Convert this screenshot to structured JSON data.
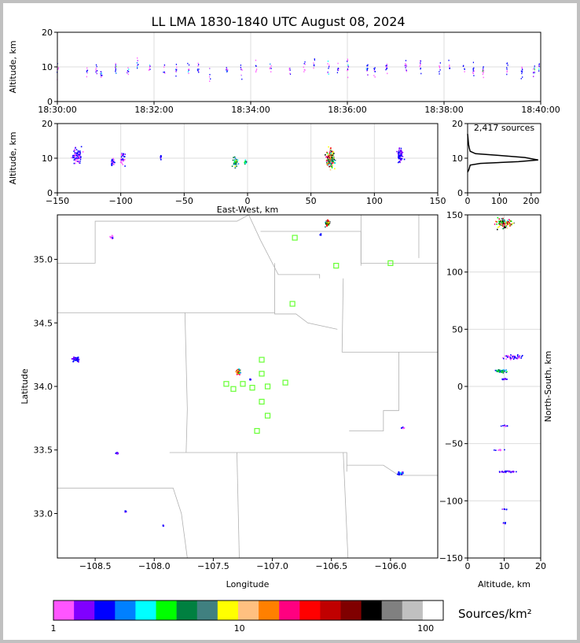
{
  "title": "LL LMA 1830-1840 UTC August 08, 2024",
  "colorbar": {
    "label": "Sources/km²",
    "tick_labels": [
      "1",
      "10",
      "100"
    ],
    "colors": [
      "#ff55ff",
      "#8000ff",
      "#0000ff",
      "#0080ff",
      "#00ffff",
      "#00ff00",
      "#008040",
      "#408080",
      "#ffff00",
      "#ffc080",
      "#ff8000",
      "#ff0080",
      "#ff0000",
      "#c00000",
      "#800000",
      "#000000",
      "#808080",
      "#c0c0c0",
      "#ffffff"
    ]
  },
  "chart_data": [
    {
      "type": "scatter",
      "panel": "altitude-time",
      "xlabel": "",
      "ylabel": "Altitude, km",
      "xticks": [
        "18:30:00",
        "18:32:00",
        "18:34:00",
        "18:36:00",
        "18:38:00",
        "18:40:00"
      ],
      "xlim_minutes": [
        0,
        10
      ],
      "ylim": [
        0,
        20
      ],
      "yticks": [
        0,
        10,
        20
      ],
      "grid": true,
      "columns": [
        {
          "t": 0.0,
          "center": 9,
          "spread": 4
        },
        {
          "t": 0.6,
          "center": 9,
          "spread": 3
        },
        {
          "t": 0.8,
          "center": 9,
          "spread": 3
        },
        {
          "t": 0.9,
          "center": 8,
          "spread": 2
        },
        {
          "t": 1.2,
          "center": 10,
          "spread": 3
        },
        {
          "t": 1.45,
          "center": 9,
          "spread": 2
        },
        {
          "t": 1.65,
          "center": 11,
          "spread": 4
        },
        {
          "t": 1.9,
          "center": 10,
          "spread": 2
        },
        {
          "t": 2.2,
          "center": 10,
          "spread": 3
        },
        {
          "t": 2.45,
          "center": 9,
          "spread": 3
        },
        {
          "t": 2.7,
          "center": 9,
          "spread": 3
        },
        {
          "t": 2.9,
          "center": 10,
          "spread": 3
        },
        {
          "t": 3.15,
          "center": 8,
          "spread": 4
        },
        {
          "t": 3.5,
          "center": 9,
          "spread": 2
        },
        {
          "t": 3.8,
          "center": 9,
          "spread": 4
        },
        {
          "t": 4.1,
          "center": 10,
          "spread": 4
        },
        {
          "t": 4.4,
          "center": 10,
          "spread": 3
        },
        {
          "t": 4.8,
          "center": 9,
          "spread": 3
        },
        {
          "t": 5.1,
          "center": 10,
          "spread": 3
        },
        {
          "t": 5.3,
          "center": 10,
          "spread": 3
        },
        {
          "t": 5.6,
          "center": 10,
          "spread": 3
        },
        {
          "t": 5.8,
          "center": 9,
          "spread": 3
        },
        {
          "t": 6.0,
          "center": 10,
          "spread": 4
        },
        {
          "t": 6.4,
          "center": 10,
          "spread": 3
        },
        {
          "t": 6.55,
          "center": 9,
          "spread": 3
        },
        {
          "t": 6.8,
          "center": 10,
          "spread": 3
        },
        {
          "t": 7.2,
          "center": 10,
          "spread": 3
        },
        {
          "t": 7.5,
          "center": 11,
          "spread": 4
        },
        {
          "t": 7.9,
          "center": 10,
          "spread": 3
        },
        {
          "t": 8.1,
          "center": 10,
          "spread": 3
        },
        {
          "t": 8.4,
          "center": 10,
          "spread": 3
        },
        {
          "t": 8.6,
          "center": 9,
          "spread": 3
        },
        {
          "t": 8.8,
          "center": 9,
          "spread": 3
        },
        {
          "t": 9.3,
          "center": 10,
          "spread": 3
        },
        {
          "t": 9.6,
          "center": 9,
          "spread": 3
        },
        {
          "t": 9.85,
          "center": 9,
          "spread": 3
        },
        {
          "t": 9.95,
          "center": 10,
          "spread": 3
        }
      ]
    },
    {
      "type": "scatter",
      "panel": "altitude-eastwest",
      "xlabel": "East-West, km",
      "ylabel": "Altitude, km",
      "xlim": [
        -150,
        150
      ],
      "xticks": [
        -150,
        -100,
        -50,
        0,
        50,
        100,
        150
      ],
      "ylim": [
        0,
        20
      ],
      "yticks": [
        0,
        10,
        20
      ],
      "grid": true,
      "clusters": [
        {
          "x": -135,
          "x_spread": 5,
          "center": 11,
          "spread": 4,
          "n": 90,
          "peak": 1
        },
        {
          "x": -107,
          "x_spread": 2,
          "center": 9,
          "spread": 2,
          "n": 25,
          "peak": 1
        },
        {
          "x": -99,
          "x_spread": 3,
          "center": 10,
          "spread": 3,
          "n": 35,
          "peak": 0
        },
        {
          "x": -69,
          "x_spread": 1,
          "center": 10.5,
          "spread": 1,
          "n": 8,
          "peak": 2
        },
        {
          "x": -10,
          "x_spread": 3,
          "center": 9,
          "spread": 2,
          "n": 60,
          "peak": 7
        },
        {
          "x": -2,
          "x_spread": 1,
          "center": 9,
          "spread": 1,
          "n": 12,
          "peak": 5
        },
        {
          "x": 65,
          "x_spread": 4,
          "center": 10,
          "spread": 4,
          "n": 170,
          "peak": 13
        },
        {
          "x": 120,
          "x_spread": 3,
          "center": 11,
          "spread": 3,
          "n": 60,
          "peak": 2
        }
      ]
    },
    {
      "type": "line",
      "panel": "altitude-histogram",
      "annotation": "2,417 sources",
      "xlim": [
        0,
        230
      ],
      "xticks": [
        0,
        100,
        200
      ],
      "ylim": [
        0,
        20
      ],
      "yticks": [
        0,
        10,
        20
      ],
      "x": [
        0,
        3,
        5,
        8,
        40,
        160,
        222,
        180,
        100,
        25,
        8,
        5,
        3,
        2,
        1,
        0
      ],
      "y": [
        6,
        6.5,
        7,
        8,
        8.5,
        9,
        9.5,
        10.2,
        10.8,
        11.3,
        12,
        13,
        14,
        15,
        16,
        17
      ]
    },
    {
      "type": "scatter",
      "panel": "plan-view",
      "xlabel": "Longitude",
      "ylabel": "Latitude",
      "xlim": [
        -108.82,
        -105.6
      ],
      "xticks": [
        -108.5,
        -108.0,
        -107.5,
        -107.0,
        -106.5,
        -106.0
      ],
      "ylim": [
        32.65,
        35.35
      ],
      "yticks": [
        33.0,
        33.5,
        34.0,
        34.5,
        35.0
      ],
      "stations_lonlat": [
        [
          -106.81,
          35.17
        ],
        [
          -106.46,
          34.95
        ],
        [
          -106.0,
          34.97
        ],
        [
          -106.83,
          34.65
        ],
        [
          -107.09,
          34.21
        ],
        [
          -107.09,
          34.1
        ],
        [
          -107.39,
          34.02
        ],
        [
          -107.33,
          33.98
        ],
        [
          -107.25,
          34.02
        ],
        [
          -107.17,
          33.99
        ],
        [
          -107.04,
          34.0
        ],
        [
          -106.89,
          34.03
        ],
        [
          -107.09,
          33.88
        ],
        [
          -107.04,
          33.77
        ],
        [
          -107.13,
          33.65
        ]
      ],
      "clusters": [
        {
          "lon": -108.67,
          "lat": 34.22,
          "dlon": 0.05,
          "dlat": 0.03,
          "n": 40,
          "peak": 2
        },
        {
          "lon": -108.37,
          "lat": 35.18,
          "dlon": 0.02,
          "dlat": 0.02,
          "n": 8,
          "peak": 1
        },
        {
          "lon": -108.32,
          "lat": 33.48,
          "dlon": 0.02,
          "dlat": 0.01,
          "n": 10,
          "peak": 2
        },
        {
          "lon": -108.25,
          "lat": 33.02,
          "dlon": 0.01,
          "dlat": 0.01,
          "n": 5,
          "peak": 2
        },
        {
          "lon": -107.93,
          "lat": 32.91,
          "dlon": 0.01,
          "dlat": 0.01,
          "n": 4,
          "peak": 1
        },
        {
          "lon": -107.29,
          "lat": 34.12,
          "dlon": 0.03,
          "dlat": 0.03,
          "n": 40,
          "peak": 11
        },
        {
          "lon": -107.19,
          "lat": 34.06,
          "dlon": 0.01,
          "dlat": 0.01,
          "n": 5,
          "peak": 2
        },
        {
          "lon": -106.54,
          "lat": 35.29,
          "dlon": 0.03,
          "dlat": 0.04,
          "n": 60,
          "peak": 13
        },
        {
          "lon": -106.6,
          "lat": 35.2,
          "dlon": 0.01,
          "dlat": 0.01,
          "n": 3,
          "peak": 0
        },
        {
          "lon": -105.9,
          "lat": 33.68,
          "dlon": 0.02,
          "dlat": 0.01,
          "n": 6,
          "peak": 1
        },
        {
          "lon": -105.92,
          "lat": 33.32,
          "dlon": 0.04,
          "dlat": 0.02,
          "n": 25,
          "peak": 3
        }
      ]
    },
    {
      "type": "scatter",
      "panel": "northsouth-altitude",
      "xlabel": "Altitude, km",
      "ylabel": "North-South, km",
      "xlim": [
        0,
        20
      ],
      "xticks": [
        0,
        10,
        20
      ],
      "ylim": [
        -150,
        150
      ],
      "yticks": [
        -150,
        -100,
        -50,
        0,
        50,
        100,
        150
      ],
      "grid": true,
      "clusters": [
        {
          "alt": 10,
          "dalt": 3,
          "ns": 143,
          "dns": 6,
          "n": 110,
          "peak": 13
        },
        {
          "alt": 12,
          "dalt": 4,
          "ns": 26,
          "dns": 3,
          "n": 50,
          "peak": 1
        },
        {
          "alt": 9,
          "dalt": 2,
          "ns": 14,
          "dns": 2,
          "n": 60,
          "peak": 6
        },
        {
          "alt": 10,
          "dalt": 1,
          "ns": 7,
          "dns": 1,
          "n": 12,
          "peak": 2
        },
        {
          "alt": 10,
          "dalt": 1,
          "ns": -34,
          "dns": 1,
          "n": 10,
          "peak": 0
        },
        {
          "alt": 9,
          "dalt": 2,
          "ns": -55,
          "dns": 1,
          "n": 12,
          "peak": 0
        },
        {
          "alt": 11,
          "dalt": 3,
          "ns": -74,
          "dns": 1,
          "n": 35,
          "peak": 2
        },
        {
          "alt": 10,
          "dalt": 1,
          "ns": -107,
          "dns": 1,
          "n": 6,
          "peak": 0
        },
        {
          "alt": 10,
          "dalt": 1,
          "ns": -119,
          "dns": 3,
          "n": 5,
          "peak": 0
        }
      ]
    }
  ]
}
